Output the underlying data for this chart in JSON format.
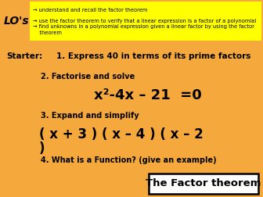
{
  "bg_color": "#F5A83C",
  "lo_box_color": "#FFFF00",
  "lo_label": "LO's",
  "lo_items": [
    "→ understand and recall the factor theorem",
    "→ use the factor theorem to verify that a linear expression is a factor of a polynomial",
    "→ find unknowns in a polynomial expression given a linear factor by using the factor\n    theorem"
  ],
  "starter_label": "Starter:",
  "item1": "1. Express 40 in terms of its prime factors",
  "item2": "2. Factorise and solve",
  "item3": "3. Expand and simplify",
  "item4": "4. What is a Function? (give an example)",
  "eq1": "x²-4x – 21  =0",
  "eq2": "( x + 3 ) ( x – 4 ) ( x – 2",
  "eq2b": ")",
  "factor_text": "The Factor theorem",
  "arrow": "→"
}
